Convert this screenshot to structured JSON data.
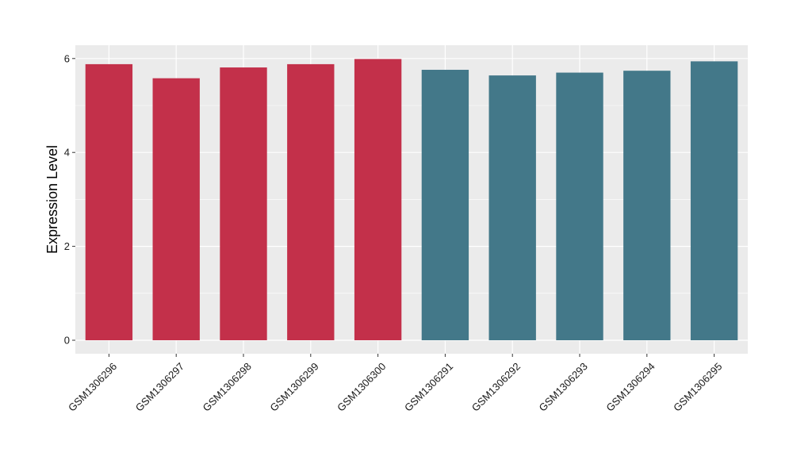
{
  "chart_data": {
    "type": "bar",
    "title": "",
    "xlabel": "",
    "ylabel": "Expression Level",
    "ylim": [
      0,
      6.3
    ],
    "y_ticks": [
      0,
      2,
      4,
      6
    ],
    "grid": true,
    "legend": "none",
    "categories": [
      "GSM1306296",
      "GSM1306297",
      "GSM1306298",
      "GSM1306299",
      "GSM1306300",
      "GSM1306291",
      "GSM1306292",
      "GSM1306293",
      "GSM1306294",
      "GSM1306295"
    ],
    "values": [
      5.88,
      5.58,
      5.81,
      5.88,
      5.99,
      5.76,
      5.64,
      5.7,
      5.74,
      5.94
    ],
    "bar_colors": [
      "#c3304a",
      "#c3304a",
      "#c3304a",
      "#c3304a",
      "#c3304a",
      "#437889",
      "#437889",
      "#437889",
      "#437889",
      "#437889"
    ],
    "panel_background": "#ebebeb",
    "grid_color": "#ffffff"
  }
}
